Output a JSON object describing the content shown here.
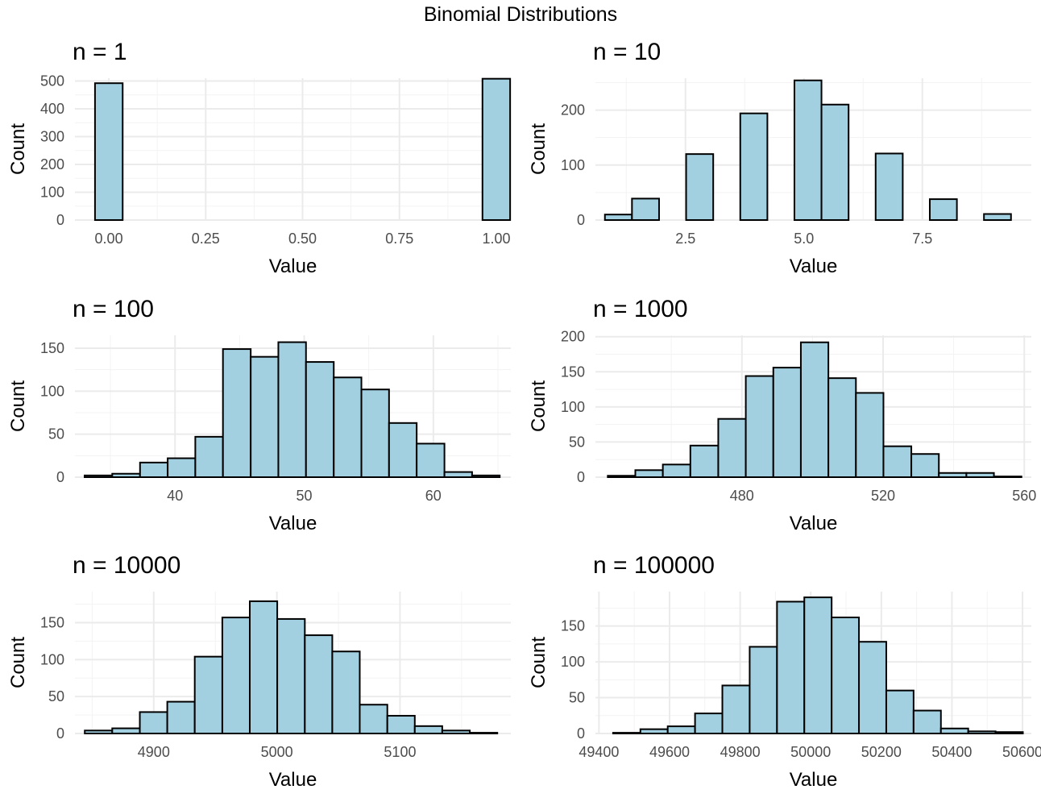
{
  "figure": {
    "title": "Binomial Distributions"
  },
  "chart_data": [
    {
      "type": "bar",
      "title": "n = 1",
      "xlabel": "Value",
      "ylabel": "Count",
      "xlim": [
        -0.0875,
        1.0375
      ],
      "ylim": [
        0,
        510
      ],
      "xticks": [
        0.0,
        0.25,
        0.5,
        0.75,
        1.0
      ],
      "xtick_labels": [
        "0.00",
        "0.25",
        "0.50",
        "0.75",
        "1.00"
      ],
      "yticks": [
        0,
        100,
        200,
        300,
        400,
        500
      ],
      "bins": [
        {
          "x0": -0.0357,
          "x1": 0.0357,
          "count": 492
        },
        {
          "x0": 0.0357,
          "x1": 0.1071,
          "count": 0
        },
        {
          "x0": 0.1071,
          "x1": 0.1786,
          "count": 0
        },
        {
          "x0": 0.1786,
          "x1": 0.25,
          "count": 0
        },
        {
          "x0": 0.25,
          "x1": 0.3214,
          "count": 0
        },
        {
          "x0": 0.3214,
          "x1": 0.3929,
          "count": 0
        },
        {
          "x0": 0.3929,
          "x1": 0.4643,
          "count": 0
        },
        {
          "x0": 0.4643,
          "x1": 0.5357,
          "count": 0
        },
        {
          "x0": 0.5357,
          "x1": 0.6071,
          "count": 0
        },
        {
          "x0": 0.6071,
          "x1": 0.6786,
          "count": 0
        },
        {
          "x0": 0.6786,
          "x1": 0.75,
          "count": 0
        },
        {
          "x0": 0.75,
          "x1": 0.8214,
          "count": 0
        },
        {
          "x0": 0.8214,
          "x1": 0.8929,
          "count": 0
        },
        {
          "x0": 0.8929,
          "x1": 0.9643,
          "count": 0
        },
        {
          "x0": 0.9643,
          "x1": 1.0357,
          "count": 508
        }
      ]
    },
    {
      "type": "bar",
      "title": "n = 10",
      "xlabel": "Value",
      "ylabel": "Count",
      "xlim": [
        0.6,
        9.8
      ],
      "ylim": [
        0,
        258
      ],
      "xticks": [
        2.5,
        5.0,
        7.5
      ],
      "xtick_labels": [
        "2.5",
        "5.0",
        "7.5"
      ],
      "yticks": [
        0,
        100,
        200
      ],
      "bins": [
        {
          "x0": 0.8,
          "x1": 1.371,
          "count": 10
        },
        {
          "x0": 1.371,
          "x1": 1.943,
          "count": 39
        },
        {
          "x0": 1.943,
          "x1": 2.514,
          "count": 0
        },
        {
          "x0": 2.514,
          "x1": 3.086,
          "count": 120
        },
        {
          "x0": 3.086,
          "x1": 3.657,
          "count": 0
        },
        {
          "x0": 3.657,
          "x1": 4.229,
          "count": 194
        },
        {
          "x0": 4.229,
          "x1": 4.8,
          "count": 0
        },
        {
          "x0": 4.8,
          "x1": 5.371,
          "count": 254
        },
        {
          "x0": 5.371,
          "x1": 5.943,
          "count": 210
        },
        {
          "x0": 5.943,
          "x1": 6.514,
          "count": 0
        },
        {
          "x0": 6.514,
          "x1": 7.086,
          "count": 121
        },
        {
          "x0": 7.086,
          "x1": 7.657,
          "count": 0
        },
        {
          "x0": 7.657,
          "x1": 8.229,
          "count": 38
        },
        {
          "x0": 8.229,
          "x1": 8.8,
          "count": 0
        },
        {
          "x0": 8.8,
          "x1": 9.371,
          "count": 11
        }
      ]
    },
    {
      "type": "bar",
      "title": "n = 100",
      "xlabel": "Value",
      "ylabel": "Count",
      "xlim": [
        32.25,
        66.0
      ],
      "ylim": [
        0,
        165
      ],
      "xticks": [
        40,
        50,
        60
      ],
      "xtick_labels": [
        "40",
        "50",
        "60"
      ],
      "yticks": [
        0,
        50,
        100,
        150
      ],
      "bins": [
        {
          "x0": 33.0,
          "x1": 35.14,
          "count": 2
        },
        {
          "x0": 35.14,
          "x1": 37.29,
          "count": 4
        },
        {
          "x0": 37.29,
          "x1": 39.43,
          "count": 17
        },
        {
          "x0": 39.43,
          "x1": 41.57,
          "count": 22
        },
        {
          "x0": 41.57,
          "x1": 43.71,
          "count": 47
        },
        {
          "x0": 43.71,
          "x1": 45.86,
          "count": 149
        },
        {
          "x0": 45.86,
          "x1": 48.0,
          "count": 140
        },
        {
          "x0": 48.0,
          "x1": 50.14,
          "count": 157
        },
        {
          "x0": 50.14,
          "x1": 52.29,
          "count": 134
        },
        {
          "x0": 52.29,
          "x1": 54.43,
          "count": 116
        },
        {
          "x0": 54.43,
          "x1": 56.57,
          "count": 102
        },
        {
          "x0": 56.57,
          "x1": 58.71,
          "count": 63
        },
        {
          "x0": 58.71,
          "x1": 60.86,
          "count": 39
        },
        {
          "x0": 60.86,
          "x1": 63.0,
          "count": 6
        },
        {
          "x0": 63.0,
          "x1": 65.14,
          "count": 2
        }
      ]
    },
    {
      "type": "bar",
      "title": "n = 1000",
      "xlabel": "Value",
      "ylabel": "Count",
      "xlim": [
        438.5,
        562.0
      ],
      "ylim": [
        0,
        202
      ],
      "xticks": [
        480,
        520,
        560
      ],
      "xtick_labels": [
        "480",
        "520",
        "560"
      ],
      "yticks": [
        0,
        50,
        100,
        150,
        200
      ],
      "bins": [
        {
          "x0": 442.0,
          "x1": 449.8,
          "count": 2
        },
        {
          "x0": 449.8,
          "x1": 457.6,
          "count": 10
        },
        {
          "x0": 457.6,
          "x1": 465.4,
          "count": 18
        },
        {
          "x0": 465.4,
          "x1": 473.3,
          "count": 45
        },
        {
          "x0": 473.3,
          "x1": 481.1,
          "count": 83
        },
        {
          "x0": 481.1,
          "x1": 488.9,
          "count": 144
        },
        {
          "x0": 488.9,
          "x1": 496.7,
          "count": 156
        },
        {
          "x0": 496.7,
          "x1": 504.5,
          "count": 192
        },
        {
          "x0": 504.5,
          "x1": 512.3,
          "count": 141
        },
        {
          "x0": 512.3,
          "x1": 520.1,
          "count": 120
        },
        {
          "x0": 520.1,
          "x1": 528.0,
          "count": 44
        },
        {
          "x0": 528.0,
          "x1": 535.8,
          "count": 33
        },
        {
          "x0": 535.8,
          "x1": 543.6,
          "count": 6
        },
        {
          "x0": 543.6,
          "x1": 551.4,
          "count": 6
        },
        {
          "x0": 551.4,
          "x1": 559.2,
          "count": 1
        }
      ]
    },
    {
      "type": "bar",
      "title": "n = 10000",
      "xlabel": "Value",
      "ylabel": "Count",
      "xlim": [
        4836.0,
        5190.0
      ],
      "ylim": [
        0,
        192
      ],
      "xticks": [
        4900,
        5000,
        5100
      ],
      "xtick_labels": [
        "4900",
        "5000",
        "5100"
      ],
      "yticks": [
        0,
        50,
        100,
        150
      ],
      "bins": [
        {
          "x0": 4844.0,
          "x1": 4866.3,
          "count": 4
        },
        {
          "x0": 4866.3,
          "x1": 4888.7,
          "count": 7
        },
        {
          "x0": 4888.7,
          "x1": 4911.0,
          "count": 29
        },
        {
          "x0": 4911.0,
          "x1": 4933.3,
          "count": 43
        },
        {
          "x0": 4933.3,
          "x1": 4955.7,
          "count": 104
        },
        {
          "x0": 4955.7,
          "x1": 4978.0,
          "count": 157
        },
        {
          "x0": 4978.0,
          "x1": 5000.3,
          "count": 179
        },
        {
          "x0": 5000.3,
          "x1": 5022.7,
          "count": 155
        },
        {
          "x0": 5022.7,
          "x1": 5045.0,
          "count": 133
        },
        {
          "x0": 5045.0,
          "x1": 5067.3,
          "count": 111
        },
        {
          "x0": 5067.3,
          "x1": 5089.7,
          "count": 39
        },
        {
          "x0": 5089.7,
          "x1": 5112.0,
          "count": 24
        },
        {
          "x0": 5112.0,
          "x1": 5134.3,
          "count": 10
        },
        {
          "x0": 5134.3,
          "x1": 5156.7,
          "count": 4
        },
        {
          "x0": 5156.7,
          "x1": 5179.0,
          "count": 1
        }
      ]
    },
    {
      "type": "bar",
      "title": "n = 100000",
      "xlabel": "Value",
      "ylabel": "Count",
      "xlim": [
        49390.0,
        50625.0
      ],
      "ylim": [
        0,
        198
      ],
      "xticks": [
        49400,
        49600,
        49800,
        50000,
        50200,
        50400,
        50600
      ],
      "xtick_labels": [
        "49400",
        "49600",
        "49800",
        "50000",
        "50200",
        "50400",
        "50600"
      ],
      "yticks": [
        0,
        50,
        100,
        150
      ],
      "bins": [
        {
          "x0": 49440.0,
          "x1": 49517.4,
          "count": 1
        },
        {
          "x0": 49517.4,
          "x1": 49594.8,
          "count": 6
        },
        {
          "x0": 49594.8,
          "x1": 49672.2,
          "count": 10
        },
        {
          "x0": 49672.2,
          "x1": 49749.6,
          "count": 28
        },
        {
          "x0": 49749.6,
          "x1": 49827.0,
          "count": 67
        },
        {
          "x0": 49827.0,
          "x1": 49904.4,
          "count": 121
        },
        {
          "x0": 49904.4,
          "x1": 49981.8,
          "count": 184
        },
        {
          "x0": 49981.8,
          "x1": 50059.2,
          "count": 190
        },
        {
          "x0": 50059.2,
          "x1": 50136.6,
          "count": 162
        },
        {
          "x0": 50136.6,
          "x1": 50214.0,
          "count": 128
        },
        {
          "x0": 50214.0,
          "x1": 50291.4,
          "count": 60
        },
        {
          "x0": 50291.4,
          "x1": 50368.8,
          "count": 32
        },
        {
          "x0": 50368.8,
          "x1": 50446.2,
          "count": 7
        },
        {
          "x0": 50446.2,
          "x1": 50523.6,
          "count": 3
        },
        {
          "x0": 50523.6,
          "x1": 50601.0,
          "count": 2
        }
      ]
    }
  ],
  "colors": {
    "bar_fill": "#A2D0E1",
    "bar_stroke": "#000000",
    "grid_major": "#EBEBEB",
    "grid_minor": "#F3F3F3",
    "tick_text": "#4D4D4D"
  }
}
